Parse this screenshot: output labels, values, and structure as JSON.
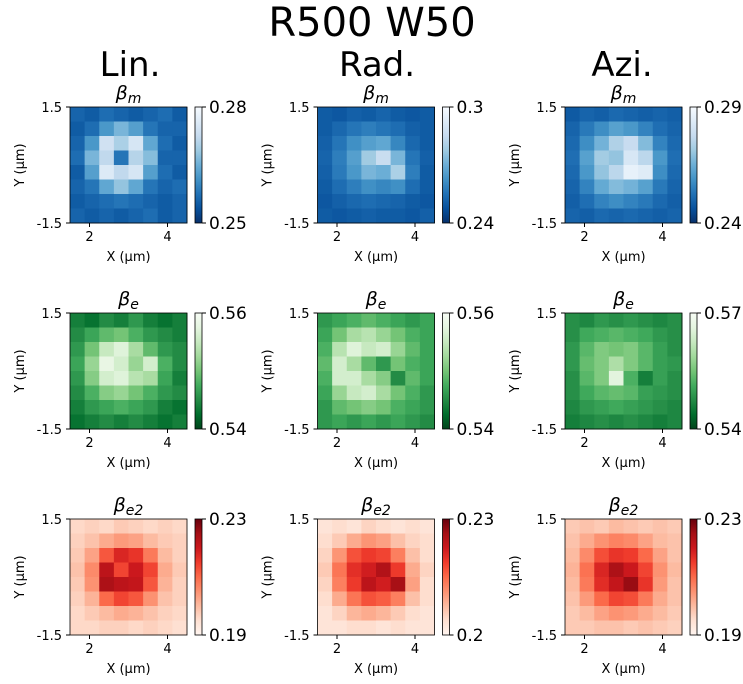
{
  "title": "R500 W50",
  "columns": [
    "Lin.",
    "Rad.",
    "Azi."
  ],
  "chart_data": [
    {
      "type": "heatmap",
      "title": "β",
      "title_sub": "m",
      "title_color": "#0000ff",
      "xlabel": "X (μm)",
      "ylabel": "Y (μm)",
      "xlim": [
        1.5,
        4.5
      ],
      "ylim": [
        -1.5,
        1.5
      ],
      "xticks": [
        2,
        4
      ],
      "yticks": [
        -1.5,
        1.5
      ],
      "clim": [
        0.25,
        0.28
      ],
      "cticks": [
        0.25,
        0.28
      ],
      "colormap": "Blues_r",
      "values": [
        [
          0.256,
          0.255,
          0.257,
          0.256,
          0.255,
          0.256,
          0.257,
          0.255
        ],
        [
          0.255,
          0.257,
          0.262,
          0.266,
          0.263,
          0.258,
          0.256,
          0.256
        ],
        [
          0.256,
          0.262,
          0.274,
          0.27,
          0.275,
          0.264,
          0.257,
          0.255
        ],
        [
          0.257,
          0.266,
          0.272,
          0.258,
          0.271,
          0.267,
          0.256,
          0.256
        ],
        [
          0.255,
          0.263,
          0.276,
          0.272,
          0.275,
          0.263,
          0.257,
          0.255
        ],
        [
          0.256,
          0.258,
          0.264,
          0.268,
          0.264,
          0.258,
          0.256,
          0.257
        ],
        [
          0.255,
          0.256,
          0.257,
          0.258,
          0.257,
          0.256,
          0.255,
          0.256
        ],
        [
          0.256,
          0.255,
          0.256,
          0.255,
          0.256,
          0.257,
          0.255,
          0.256
        ]
      ]
    },
    {
      "type": "heatmap",
      "title": "β",
      "title_sub": "m",
      "title_color": "#0000ff",
      "xlabel": "X (μm)",
      "ylabel": "Y (μm)",
      "xlim": [
        1.5,
        4.5
      ],
      "ylim": [
        -1.5,
        1.5
      ],
      "xticks": [
        2,
        4
      ],
      "yticks": [
        -1.5,
        1.5
      ],
      "clim": [
        0.24,
        0.3
      ],
      "cticks": [
        0.24,
        0.3
      ],
      "colormap": "Blues_r",
      "values": [
        [
          0.25,
          0.249,
          0.251,
          0.25,
          0.252,
          0.25,
          0.249,
          0.25
        ],
        [
          0.25,
          0.253,
          0.256,
          0.258,
          0.256,
          0.254,
          0.251,
          0.25
        ],
        [
          0.251,
          0.256,
          0.262,
          0.266,
          0.268,
          0.26,
          0.253,
          0.25
        ],
        [
          0.252,
          0.258,
          0.266,
          0.278,
          0.286,
          0.272,
          0.256,
          0.251
        ],
        [
          0.251,
          0.257,
          0.264,
          0.272,
          0.27,
          0.28,
          0.258,
          0.25
        ],
        [
          0.25,
          0.254,
          0.258,
          0.262,
          0.26,
          0.262,
          0.254,
          0.25
        ],
        [
          0.249,
          0.251,
          0.253,
          0.254,
          0.253,
          0.252,
          0.25,
          0.249
        ],
        [
          0.25,
          0.249,
          0.25,
          0.251,
          0.25,
          0.25,
          0.249,
          0.251
        ]
      ]
    },
    {
      "type": "heatmap",
      "title": "β",
      "title_sub": "m",
      "title_color": "#0000ff",
      "xlabel": "X (μm)",
      "ylabel": "Y (μm)",
      "xlim": [
        1.5,
        4.5
      ],
      "ylim": [
        -1.5,
        1.5
      ],
      "xticks": [
        2,
        4
      ],
      "yticks": [
        -1.5,
        1.5
      ],
      "clim": [
        0.24,
        0.29
      ],
      "cticks": [
        0.24,
        0.29
      ],
      "colormap": "Blues_r",
      "values": [
        [
          0.248,
          0.25,
          0.249,
          0.251,
          0.25,
          0.249,
          0.25,
          0.249
        ],
        [
          0.25,
          0.254,
          0.258,
          0.262,
          0.26,
          0.256,
          0.252,
          0.25
        ],
        [
          0.251,
          0.258,
          0.266,
          0.274,
          0.278,
          0.268,
          0.256,
          0.251
        ],
        [
          0.252,
          0.262,
          0.272,
          0.27,
          0.282,
          0.276,
          0.26,
          0.252
        ],
        [
          0.251,
          0.26,
          0.27,
          0.276,
          0.286,
          0.284,
          0.258,
          0.251
        ],
        [
          0.25,
          0.256,
          0.264,
          0.268,
          0.266,
          0.262,
          0.254,
          0.25
        ],
        [
          0.249,
          0.252,
          0.256,
          0.258,
          0.256,
          0.254,
          0.251,
          0.249
        ],
        [
          0.25,
          0.249,
          0.251,
          0.25,
          0.251,
          0.25,
          0.249,
          0.25
        ]
      ]
    },
    {
      "type": "heatmap",
      "title": "β",
      "title_sub": "e",
      "title_color": "#008000",
      "xlabel": "X (μm)",
      "ylabel": "Y (μm)",
      "xlim": [
        1.5,
        4.5
      ],
      "ylim": [
        -1.5,
        1.5
      ],
      "xticks": [
        2,
        4
      ],
      "yticks": [
        -1.5,
        1.5
      ],
      "clim": [
        0.54,
        0.56
      ],
      "cticks": [
        0.54,
        0.56
      ],
      "colormap": "Greens_r",
      "values": [
        [
          0.544,
          0.543,
          0.545,
          0.544,
          0.546,
          0.544,
          0.543,
          0.544
        ],
        [
          0.545,
          0.547,
          0.549,
          0.55,
          0.548,
          0.546,
          0.545,
          0.544
        ],
        [
          0.546,
          0.55,
          0.555,
          0.557,
          0.553,
          0.549,
          0.546,
          0.545
        ],
        [
          0.547,
          0.552,
          0.558,
          0.556,
          0.552,
          0.556,
          0.548,
          0.545
        ],
        [
          0.546,
          0.551,
          0.556,
          0.557,
          0.554,
          0.553,
          0.547,
          0.544
        ],
        [
          0.545,
          0.548,
          0.551,
          0.552,
          0.55,
          0.548,
          0.546,
          0.545
        ],
        [
          0.544,
          0.546,
          0.547,
          0.548,
          0.547,
          0.546,
          0.544,
          0.543
        ],
        [
          0.543,
          0.544,
          0.545,
          0.544,
          0.545,
          0.544,
          0.543,
          0.544
        ]
      ]
    },
    {
      "type": "heatmap",
      "title": "β",
      "title_sub": "e",
      "title_color": "#008000",
      "xlabel": "X (μm)",
      "ylabel": "Y (μm)",
      "xlim": [
        1.5,
        4.5
      ],
      "ylim": [
        -1.5,
        1.5
      ],
      "xticks": [
        2,
        4
      ],
      "yticks": [
        -1.5,
        1.5
      ],
      "clim": [
        0.54,
        0.56
      ],
      "cticks": [
        0.54,
        0.56
      ],
      "colormap": "Greens_r",
      "values": [
        [
          0.546,
          0.547,
          0.548,
          0.549,
          0.548,
          0.547,
          0.546,
          0.547
        ],
        [
          0.547,
          0.55,
          0.553,
          0.554,
          0.552,
          0.55,
          0.548,
          0.547
        ],
        [
          0.548,
          0.554,
          0.557,
          0.555,
          0.556,
          0.552,
          0.549,
          0.547
        ],
        [
          0.549,
          0.556,
          0.553,
          0.549,
          0.546,
          0.55,
          0.548,
          0.547
        ],
        [
          0.548,
          0.556,
          0.556,
          0.553,
          0.551,
          0.545,
          0.549,
          0.547
        ],
        [
          0.547,
          0.552,
          0.555,
          0.556,
          0.553,
          0.55,
          0.548,
          0.546
        ],
        [
          0.546,
          0.549,
          0.55,
          0.551,
          0.55,
          0.548,
          0.547,
          0.546
        ],
        [
          0.546,
          0.547,
          0.546,
          0.547,
          0.546,
          0.547,
          0.546,
          0.545
        ]
      ]
    },
    {
      "type": "heatmap",
      "title": "β",
      "title_sub": "e",
      "title_color": "#008000",
      "xlabel": "X (μm)",
      "ylabel": "Y (μm)",
      "xlim": [
        1.5,
        4.5
      ],
      "ylim": [
        -1.5,
        1.5
      ],
      "xticks": [
        2,
        4
      ],
      "yticks": [
        -1.5,
        1.5
      ],
      "clim": [
        0.54,
        0.57
      ],
      "cticks": [
        0.54,
        0.57
      ],
      "colormap": "Greens_r",
      "values": [
        [
          0.548,
          0.547,
          0.549,
          0.548,
          0.549,
          0.548,
          0.547,
          0.548
        ],
        [
          0.548,
          0.551,
          0.552,
          0.553,
          0.552,
          0.551,
          0.549,
          0.548
        ],
        [
          0.549,
          0.553,
          0.556,
          0.555,
          0.556,
          0.553,
          0.55,
          0.548
        ],
        [
          0.549,
          0.554,
          0.556,
          0.56,
          0.556,
          0.553,
          0.55,
          0.549
        ],
        [
          0.548,
          0.553,
          0.556,
          0.566,
          0.552,
          0.546,
          0.55,
          0.548
        ],
        [
          0.548,
          0.551,
          0.553,
          0.554,
          0.553,
          0.55,
          0.549,
          0.548
        ],
        [
          0.547,
          0.549,
          0.55,
          0.551,
          0.55,
          0.549,
          0.548,
          0.547
        ],
        [
          0.546,
          0.547,
          0.548,
          0.547,
          0.548,
          0.547,
          0.546,
          0.547
        ]
      ]
    },
    {
      "type": "heatmap",
      "title": "β",
      "title_sub": "e2",
      "title_color": "#ff0000",
      "xlabel": "X (μm)",
      "ylabel": "Y (μm)",
      "xlim": [
        1.5,
        4.5
      ],
      "ylim": [
        -1.5,
        1.5
      ],
      "xticks": [
        2,
        4
      ],
      "yticks": [
        -1.5,
        1.5
      ],
      "clim": [
        0.19,
        0.23
      ],
      "cticks": [
        0.19,
        0.23
      ],
      "colormap": "Reds",
      "values": [
        [
          0.196,
          0.197,
          0.196,
          0.198,
          0.197,
          0.196,
          0.197,
          0.196
        ],
        [
          0.197,
          0.199,
          0.202,
          0.204,
          0.203,
          0.2,
          0.198,
          0.197
        ],
        [
          0.198,
          0.203,
          0.212,
          0.218,
          0.216,
          0.208,
          0.2,
          0.197
        ],
        [
          0.199,
          0.206,
          0.222,
          0.214,
          0.22,
          0.214,
          0.202,
          0.198
        ],
        [
          0.198,
          0.205,
          0.224,
          0.222,
          0.221,
          0.212,
          0.201,
          0.197
        ],
        [
          0.197,
          0.201,
          0.21,
          0.214,
          0.212,
          0.205,
          0.199,
          0.197
        ],
        [
          0.196,
          0.198,
          0.2,
          0.202,
          0.201,
          0.199,
          0.197,
          0.196
        ],
        [
          0.196,
          0.196,
          0.197,
          0.197,
          0.196,
          0.197,
          0.196,
          0.195
        ]
      ]
    },
    {
      "type": "heatmap",
      "title": "β",
      "title_sub": "e2",
      "title_color": "#ff0000",
      "xlabel": "X (μm)",
      "ylabel": "Y (μm)",
      "xlim": [
        1.5,
        4.5
      ],
      "ylim": [
        -1.5,
        1.5
      ],
      "xticks": [
        2,
        4
      ],
      "yticks": [
        -1.5,
        1.5
      ],
      "clim": [
        0.2,
        0.23
      ],
      "cticks": [
        0.2,
        0.23
      ],
      "colormap": "Reds",
      "values": [
        [
          0.203,
          0.204,
          0.203,
          0.205,
          0.204,
          0.203,
          0.204,
          0.203
        ],
        [
          0.204,
          0.206,
          0.209,
          0.211,
          0.21,
          0.207,
          0.205,
          0.204
        ],
        [
          0.205,
          0.211,
          0.217,
          0.219,
          0.218,
          0.213,
          0.207,
          0.204
        ],
        [
          0.206,
          0.214,
          0.22,
          0.222,
          0.225,
          0.219,
          0.209,
          0.205
        ],
        [
          0.205,
          0.213,
          0.219,
          0.224,
          0.222,
          0.226,
          0.21,
          0.204
        ],
        [
          0.204,
          0.209,
          0.214,
          0.217,
          0.216,
          0.213,
          0.207,
          0.204
        ],
        [
          0.203,
          0.205,
          0.208,
          0.209,
          0.208,
          0.206,
          0.204,
          0.203
        ],
        [
          0.203,
          0.203,
          0.204,
          0.204,
          0.203,
          0.204,
          0.203,
          0.203
        ]
      ]
    },
    {
      "type": "heatmap",
      "title": "β",
      "title_sub": "e2",
      "title_color": "#ff0000",
      "xlabel": "X (μm)",
      "ylabel": "Y (μm)",
      "xlim": [
        1.5,
        4.5
      ],
      "ylim": [
        -1.5,
        1.5
      ],
      "xticks": [
        2,
        4
      ],
      "yticks": [
        -1.5,
        1.5
      ],
      "clim": [
        0.19,
        0.23
      ],
      "cticks": [
        0.19,
        0.23
      ],
      "colormap": "Reds",
      "values": [
        [
          0.198,
          0.199,
          0.198,
          0.2,
          0.199,
          0.198,
          0.199,
          0.198
        ],
        [
          0.199,
          0.202,
          0.205,
          0.207,
          0.206,
          0.203,
          0.2,
          0.199
        ],
        [
          0.2,
          0.206,
          0.213,
          0.216,
          0.215,
          0.21,
          0.203,
          0.199
        ],
        [
          0.201,
          0.209,
          0.218,
          0.224,
          0.22,
          0.214,
          0.205,
          0.2
        ],
        [
          0.2,
          0.208,
          0.217,
          0.221,
          0.226,
          0.216,
          0.204,
          0.199
        ],
        [
          0.199,
          0.204,
          0.21,
          0.214,
          0.213,
          0.208,
          0.202,
          0.199
        ],
        [
          0.198,
          0.2,
          0.203,
          0.205,
          0.204,
          0.202,
          0.2,
          0.198
        ],
        [
          0.198,
          0.198,
          0.199,
          0.199,
          0.198,
          0.199,
          0.198,
          0.197
        ]
      ]
    }
  ]
}
